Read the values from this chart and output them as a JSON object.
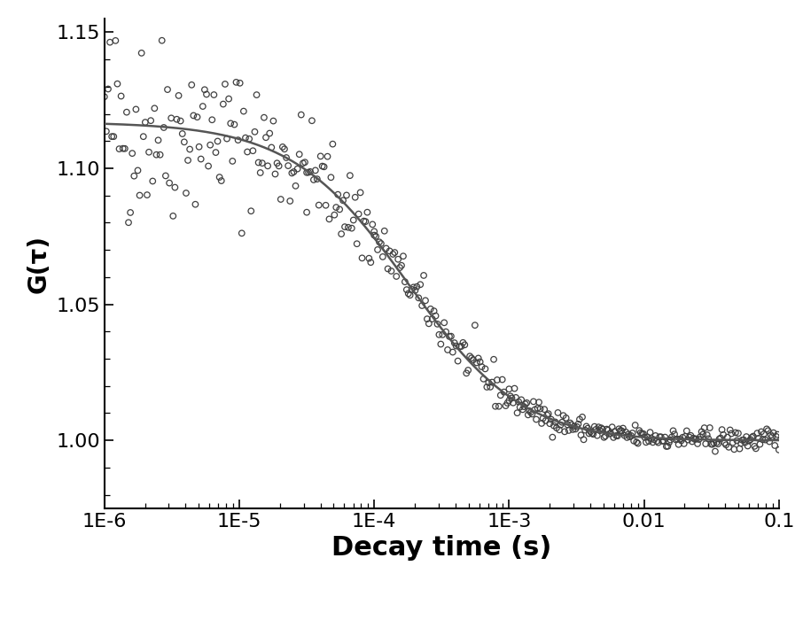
{
  "title": "",
  "xlabel": "Decay time (s)",
  "ylabel": "G(τ)",
  "xlim_log": [
    -6,
    -1
  ],
  "ylim": [
    0.975,
    1.155
  ],
  "yticks": [
    1.0,
    1.05,
    1.1,
    1.15
  ],
  "background_color": "#ffffff",
  "scatter_color": "none",
  "scatter_edgecolor": "#404040",
  "scatter_linewidth": 0.9,
  "scatter_size": 22,
  "fit_color": "#555555",
  "fit_linewidth": 1.8,
  "fit_G0": 0.117,
  "fit_tauD": 0.00018,
  "fit_aspect_ratio": 5.0,
  "fit_baseline": 1.0,
  "xlabel_fontsize": 22,
  "ylabel_fontsize": 20,
  "tick_fontsize": 16,
  "xlabel_fontweight": "bold",
  "ylabel_fontweight": "bold"
}
